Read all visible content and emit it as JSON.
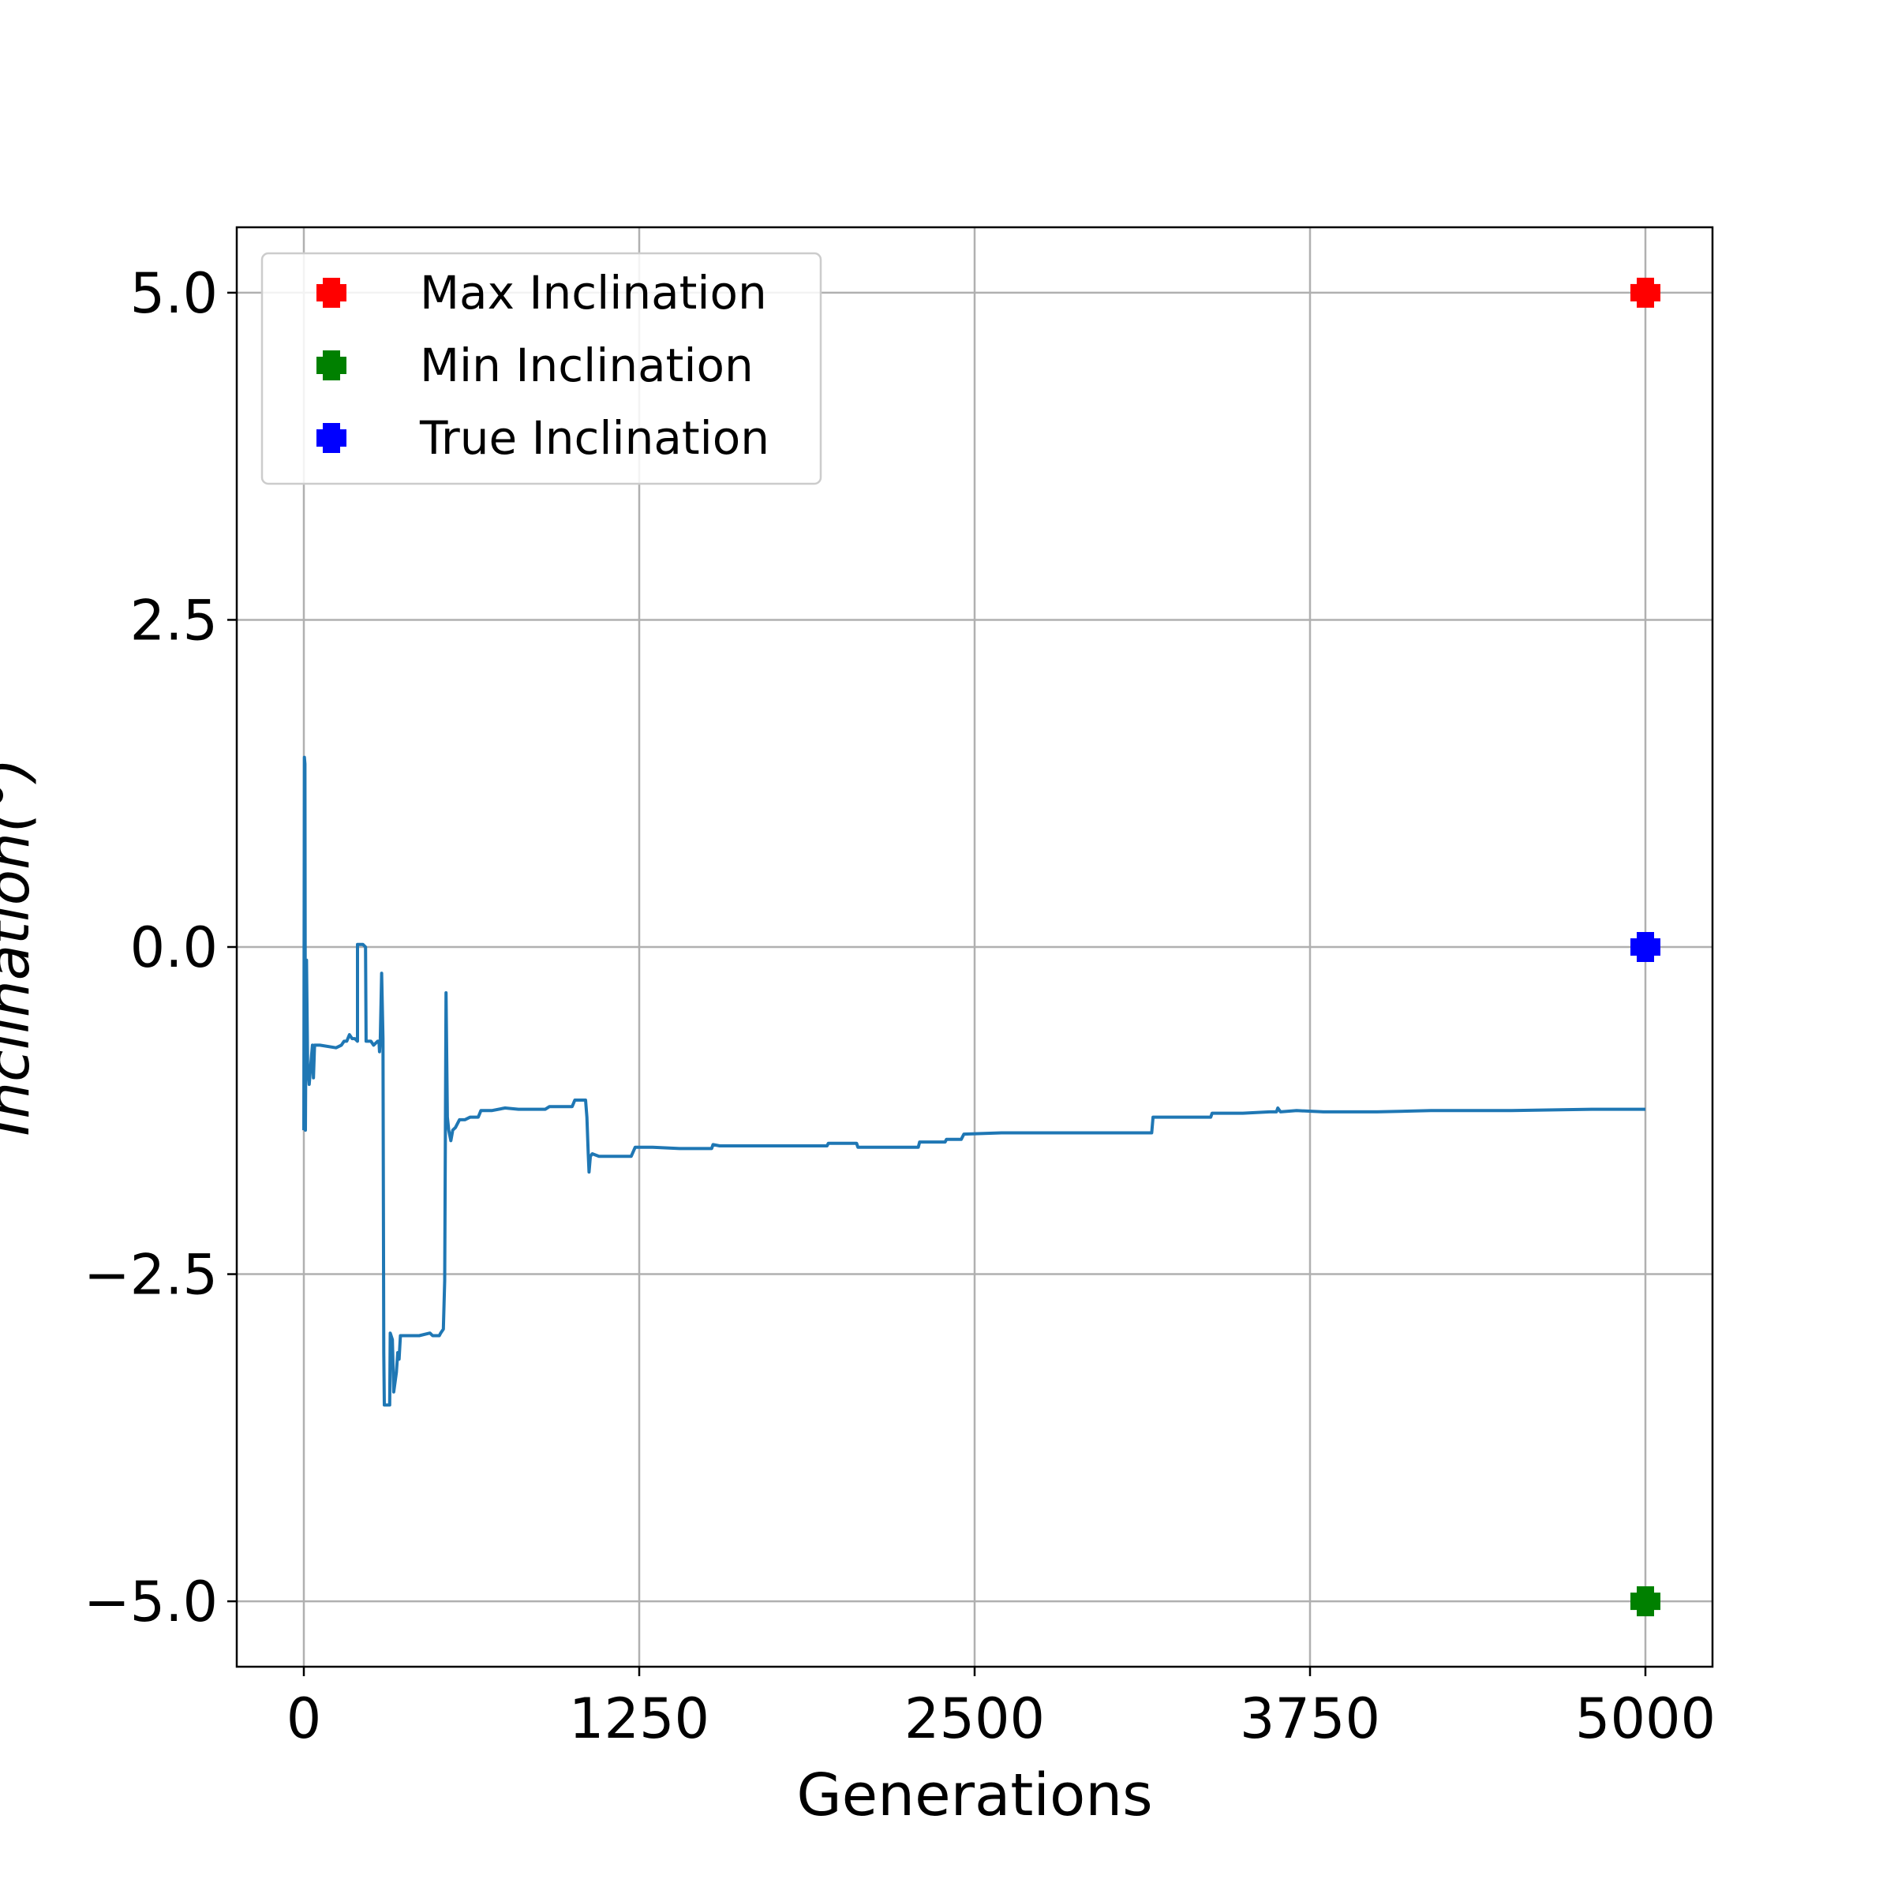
{
  "chart_data": {
    "type": "line",
    "title": "",
    "xlabel": "Generations",
    "ylabel": "Inclination(°)",
    "xlim": [
      -250,
      5250
    ],
    "ylim": [
      -5.5,
      5.5
    ],
    "x_ticks": [
      0,
      1250,
      2500,
      3750,
      5000
    ],
    "x_tick_labels": [
      "0",
      "1250",
      "2500",
      "3750",
      "5000"
    ],
    "y_ticks": [
      -5.0,
      -2.5,
      0.0,
      2.5,
      5.0
    ],
    "y_tick_labels": [
      "−5.0",
      "−2.5",
      "0.0",
      "2.5",
      "5.0"
    ],
    "grid": true,
    "legend_position": "top-left",
    "legend": [
      {
        "label": "Max Inclination",
        "color": "#ff0000"
      },
      {
        "label": "Min Inclination",
        "color": "#008000"
      },
      {
        "label": "True Inclination",
        "color": "#0000ff"
      }
    ],
    "series": [
      {
        "color": "#1f77b4",
        "points": [
          [
            0,
            -1.4
          ],
          [
            2,
            1.45
          ],
          [
            4,
            1.4
          ],
          [
            6,
            -1.4
          ],
          [
            8,
            -0.6
          ],
          [
            10,
            -0.1
          ],
          [
            14,
            -0.9
          ],
          [
            20,
            -1.05
          ],
          [
            26,
            -0.9
          ],
          [
            32,
            -0.75
          ],
          [
            36,
            -1.0
          ],
          [
            40,
            -0.75
          ],
          [
            60,
            -0.75
          ],
          [
            120,
            -0.77
          ],
          [
            140,
            -0.75
          ],
          [
            150,
            -0.72
          ],
          [
            160,
            -0.72
          ],
          [
            170,
            -0.67
          ],
          [
            180,
            -0.7
          ],
          [
            190,
            -0.7
          ],
          [
            200,
            -0.72
          ],
          [
            200,
            0.02
          ],
          [
            220,
            0.02
          ],
          [
            230,
            0.0
          ],
          [
            232,
            -0.72
          ],
          [
            250,
            -0.72
          ],
          [
            260,
            -0.75
          ],
          [
            275,
            -0.72
          ],
          [
            280,
            -0.72
          ],
          [
            282,
            -0.8
          ],
          [
            285,
            -0.7
          ],
          [
            290,
            -0.2
          ],
          [
            295,
            -0.7
          ],
          [
            298,
            -3.1
          ],
          [
            300,
            -3.5
          ],
          [
            320,
            -3.5
          ],
          [
            322,
            -2.95
          ],
          [
            330,
            -3.0
          ],
          [
            335,
            -3.4
          ],
          [
            345,
            -3.25
          ],
          [
            350,
            -3.1
          ],
          [
            355,
            -3.15
          ],
          [
            360,
            -2.97
          ],
          [
            400,
            -2.97
          ],
          [
            430,
            -2.97
          ],
          [
            470,
            -2.95
          ],
          [
            480,
            -2.97
          ],
          [
            505,
            -2.97
          ],
          [
            510,
            -2.95
          ],
          [
            520,
            -2.92
          ],
          [
            525,
            -2.55
          ],
          [
            530,
            -0.35
          ],
          [
            535,
            -1.3
          ],
          [
            540,
            -1.4
          ],
          [
            548,
            -1.48
          ],
          [
            555,
            -1.4
          ],
          [
            565,
            -1.38
          ],
          [
            580,
            -1.32
          ],
          [
            600,
            -1.32
          ],
          [
            620,
            -1.3
          ],
          [
            650,
            -1.3
          ],
          [
            660,
            -1.25
          ],
          [
            700,
            -1.25
          ],
          [
            750,
            -1.23
          ],
          [
            800,
            -1.24
          ],
          [
            900,
            -1.24
          ],
          [
            915,
            -1.22
          ],
          [
            1000,
            -1.22
          ],
          [
            1010,
            -1.17
          ],
          [
            1050,
            -1.17
          ],
          [
            1055,
            -1.3
          ],
          [
            1060,
            -1.58
          ],
          [
            1063,
            -1.72
          ],
          [
            1068,
            -1.6
          ],
          [
            1075,
            -1.58
          ],
          [
            1100,
            -1.6
          ],
          [
            1150,
            -1.6
          ],
          [
            1220,
            -1.6
          ],
          [
            1235,
            -1.53
          ],
          [
            1300,
            -1.53
          ],
          [
            1400,
            -1.54
          ],
          [
            1520,
            -1.54
          ],
          [
            1525,
            -1.51
          ],
          [
            1550,
            -1.52
          ],
          [
            1600,
            -1.52
          ],
          [
            1800,
            -1.52
          ],
          [
            1950,
            -1.52
          ],
          [
            1955,
            -1.5
          ],
          [
            2060,
            -1.5
          ],
          [
            2065,
            -1.53
          ],
          [
            2100,
            -1.53
          ],
          [
            2290,
            -1.53
          ],
          [
            2295,
            -1.49
          ],
          [
            2390,
            -1.49
          ],
          [
            2395,
            -1.47
          ],
          [
            2450,
            -1.47
          ],
          [
            2460,
            -1.43
          ],
          [
            2600,
            -1.42
          ],
          [
            3000,
            -1.42
          ],
          [
            3160,
            -1.42
          ],
          [
            3165,
            -1.3
          ],
          [
            3250,
            -1.3
          ],
          [
            3380,
            -1.3
          ],
          [
            3385,
            -1.27
          ],
          [
            3500,
            -1.27
          ],
          [
            3600,
            -1.26
          ],
          [
            3625,
            -1.26
          ],
          [
            3630,
            -1.23
          ],
          [
            3640,
            -1.26
          ],
          [
            3700,
            -1.25
          ],
          [
            3800,
            -1.26
          ],
          [
            4000,
            -1.26
          ],
          [
            4200,
            -1.25
          ],
          [
            4500,
            -1.25
          ],
          [
            4800,
            -1.24
          ],
          [
            5000,
            -1.24
          ]
        ]
      },
      {
        "name": "Max Inclination",
        "color": "#ff0000",
        "marker": "plus",
        "points": [
          [
            5000,
            5.0
          ]
        ]
      },
      {
        "name": "Min Inclination",
        "color": "#008000",
        "marker": "plus",
        "points": [
          [
            5000,
            -5.0
          ]
        ]
      },
      {
        "name": "True Inclination",
        "color": "#0000ff",
        "marker": "plus",
        "points": [
          [
            5000,
            0.0
          ]
        ]
      }
    ]
  }
}
